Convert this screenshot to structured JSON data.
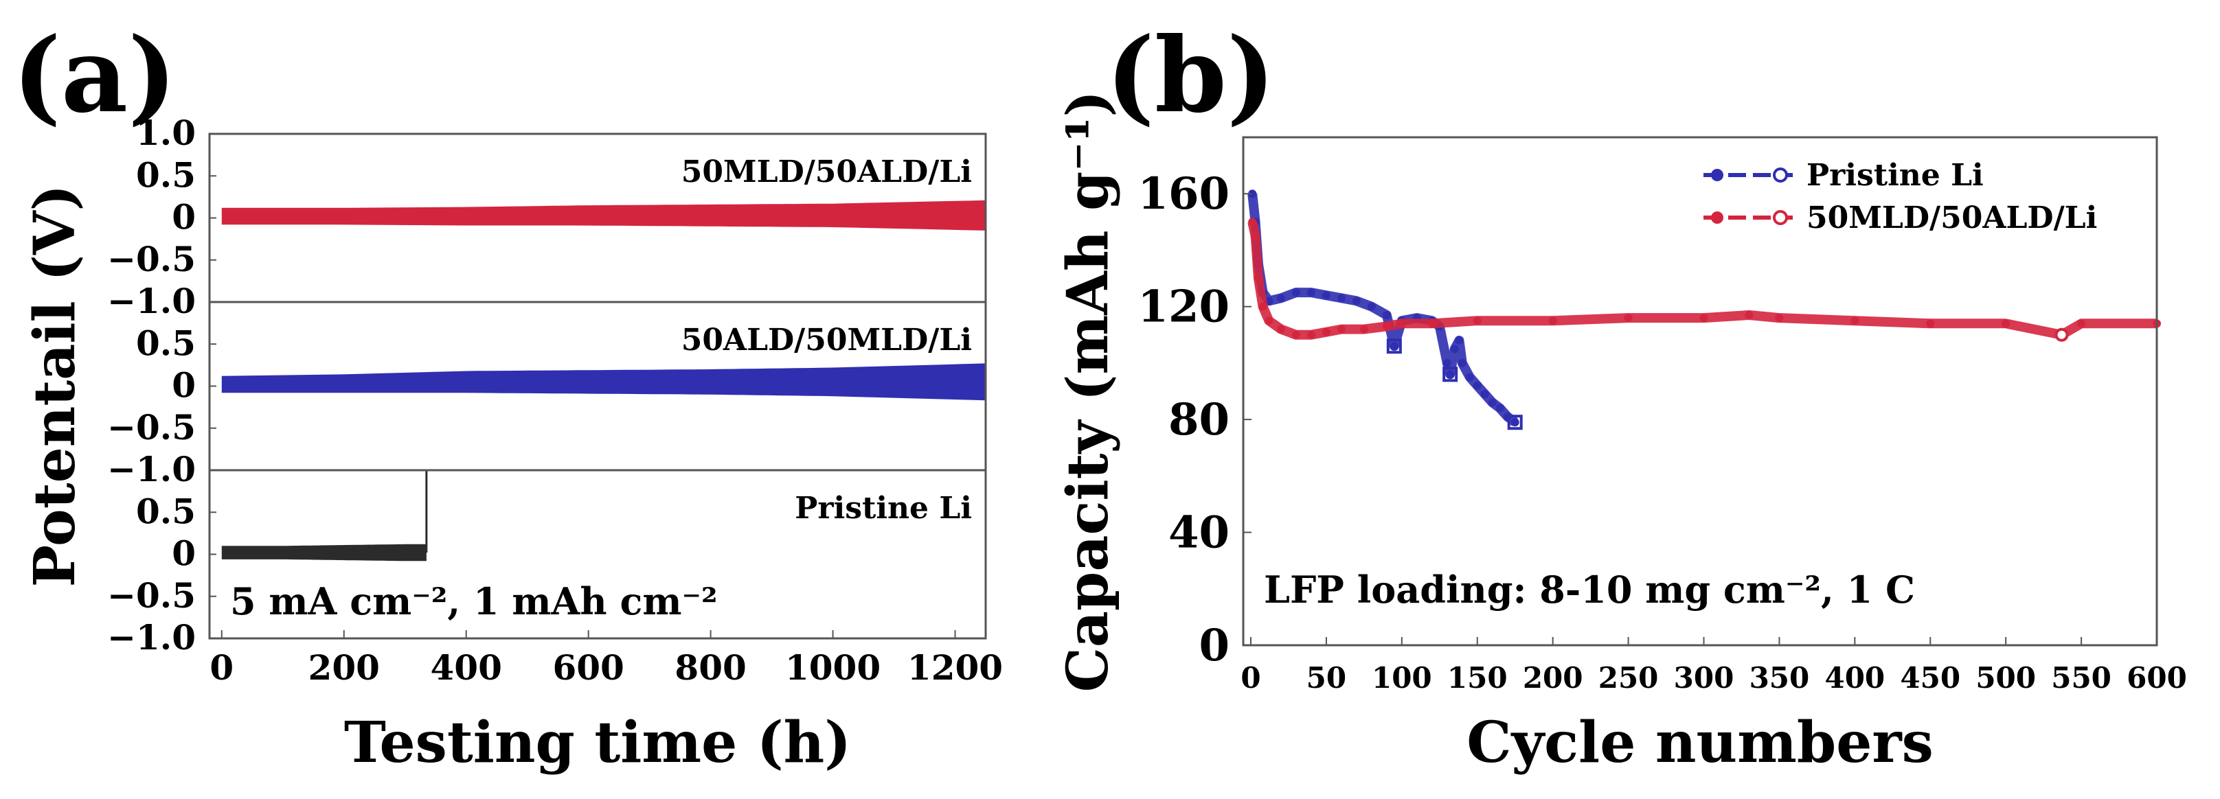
{
  "panel_a_label": "(a)",
  "panel_b_label": "(b)",
  "chart_data": [
    {
      "id": "a",
      "type": "line",
      "subtype": "stacked voltage profiles",
      "title": "",
      "xlabel": "Testing time (h)",
      "ylabel": "Potentail (V)",
      "xlim": [
        -20,
        1250
      ],
      "x_ticks": [
        "0",
        "200",
        "400",
        "600",
        "800",
        "1000",
        "1200"
      ],
      "y_ticks": [
        "1.0",
        "0.5",
        "0",
        "−0.5",
        "−1.0"
      ],
      "annotation": "5 mA cm⁻², 1 mAh cm⁻²",
      "panels": [
        {
          "label": "50MLD/50ALD/Li",
          "color": "#d4253f",
          "ylim": [
            -1.0,
            1.0
          ],
          "x": [
            0,
            200,
            400,
            600,
            800,
            1000,
            1250
          ],
          "center": [
            0.02,
            0.02,
            0.02,
            0.03,
            0.03,
            0.03,
            0.03
          ],
          "amplitude": [
            0.1,
            0.1,
            0.11,
            0.12,
            0.13,
            0.14,
            0.18
          ]
        },
        {
          "label": "50ALD/50MLD/Li",
          "color": "#2f2fb0",
          "ylim": [
            -1.0,
            1.0
          ],
          "x": [
            0,
            200,
            400,
            600,
            800,
            1000,
            1250
          ],
          "center": [
            0.02,
            0.03,
            0.05,
            0.05,
            0.05,
            0.05,
            0.05
          ],
          "amplitude": [
            0.1,
            0.11,
            0.13,
            0.14,
            0.15,
            0.17,
            0.22
          ]
        },
        {
          "label": "Pristine Li",
          "color": "#2b2b2b",
          "ylim": [
            -1.0,
            1.0
          ],
          "x": [
            0,
            100,
            200,
            300,
            335
          ],
          "center": [
            0.02,
            0.02,
            0.02,
            0.02,
            0.02
          ],
          "amplitude": [
            0.08,
            0.08,
            0.09,
            0.1,
            0.1
          ],
          "failure_x": 335,
          "failure_spike_to": 1.0
        }
      ]
    },
    {
      "id": "b",
      "type": "scatter",
      "title": "",
      "xlabel": "Cycle numbers",
      "ylabel": "Capacity (mAh g⁻¹)",
      "xlim": [
        -5,
        600
      ],
      "ylim": [
        0,
        180
      ],
      "x_ticks": [
        0,
        50,
        100,
        150,
        200,
        250,
        300,
        350,
        400,
        450,
        500,
        550,
        600
      ],
      "y_ticks": [
        0,
        40,
        80,
        120,
        160
      ],
      "annotation": "LFP loading: 8-10 mg cm⁻², 1 C",
      "series": [
        {
          "name": "Pristine Li",
          "color": "#2f2fb0",
          "x": [
            1,
            3,
            5,
            8,
            12,
            20,
            30,
            40,
            50,
            60,
            70,
            80,
            90,
            95,
            100,
            110,
            120,
            125,
            130,
            132,
            135,
            138,
            140,
            145,
            150,
            155,
            160,
            165,
            170,
            175
          ],
          "y": [
            160,
            150,
            135,
            125,
            122,
            123,
            125,
            125,
            124,
            123,
            122,
            120,
            117,
            106,
            115,
            116,
            115,
            113,
            100,
            96,
            105,
            108,
            100,
            95,
            92,
            89,
            86,
            84,
            81,
            79
          ]
        },
        {
          "name": "50MLD/50ALD/Li",
          "color": "#d4253f",
          "x": [
            1,
            3,
            5,
            8,
            12,
            20,
            30,
            40,
            50,
            60,
            75,
            90,
            100,
            120,
            150,
            200,
            250,
            300,
            330,
            350,
            400,
            450,
            500,
            537,
            550,
            600
          ],
          "y": [
            150,
            145,
            130,
            120,
            115,
            112,
            110,
            110,
            111,
            112,
            112,
            113,
            114,
            114,
            115,
            115,
            116,
            116,
            117,
            116,
            115,
            114,
            114,
            110,
            114,
            114
          ]
        }
      ]
    }
  ]
}
